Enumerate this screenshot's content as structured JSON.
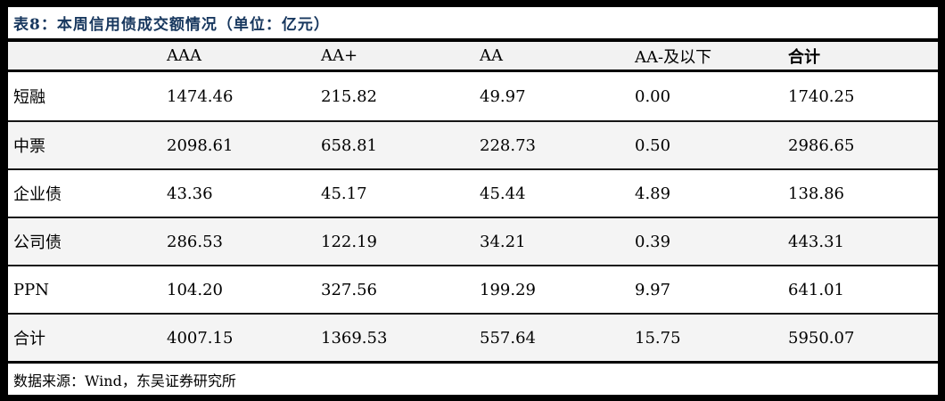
{
  "title": "表8：本周信用债成交额情况（单位：亿元）",
  "colors": {
    "title_text": "#17375E",
    "header_background": "#f2f2f2",
    "alt_row_background": "#f4f4f4",
    "rule": "#000000"
  },
  "table": {
    "columns": [
      "",
      "AAA",
      "AA+",
      "AA",
      "AA-及以下",
      "合计"
    ],
    "rows": [
      {
        "label": "短融",
        "values": [
          "1474.46",
          "215.82",
          "49.97",
          "0.00",
          "1740.25"
        ]
      },
      {
        "label": "中票",
        "values": [
          "2098.61",
          "658.81",
          "228.73",
          "0.50",
          "2986.65"
        ]
      },
      {
        "label": "企业债",
        "values": [
          "43.36",
          "45.17",
          "45.44",
          "4.89",
          "138.86"
        ]
      },
      {
        "label": "公司债",
        "values": [
          "286.53",
          "122.19",
          "34.21",
          "0.39",
          "443.31"
        ]
      },
      {
        "label": "PPN",
        "values": [
          "104.20",
          "327.56",
          "199.29",
          "9.97",
          "641.01"
        ]
      },
      {
        "label": "合计",
        "values": [
          "4007.15",
          "1369.53",
          "557.64",
          "15.75",
          "5950.07"
        ]
      }
    ]
  },
  "footer": {
    "source": "数据来源：Wind，东吴证券研究所"
  }
}
